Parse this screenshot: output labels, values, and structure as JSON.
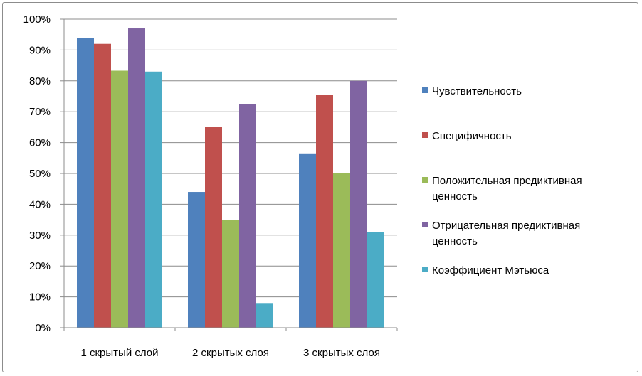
{
  "chart_data": {
    "type": "bar",
    "categories": [
      "1 скрытый слой",
      "2 скрытых слоя",
      "3 скрытых слоя"
    ],
    "series": [
      {
        "name": "Чувствительность",
        "legend_lines": [
          "Чувствительность"
        ],
        "color": "#4f81bd",
        "values": [
          0.94,
          0.44,
          0.565
        ]
      },
      {
        "name": "Специфичность",
        "legend_lines": [
          "Специфичность"
        ],
        "color": "#c0504d",
        "values": [
          0.92,
          0.65,
          0.755
        ]
      },
      {
        "name": "Положительная предиктивная ценность",
        "legend_lines": [
          "Положительная предиктивная",
          "ценность"
        ],
        "color": "#9bbb59",
        "values": [
          0.833,
          0.35,
          0.5
        ]
      },
      {
        "name": "Отрицательная предиктивная ценность",
        "legend_lines": [
          "Отрицательная предиктивная",
          "ценность"
        ],
        "color": "#8064a2",
        "values": [
          0.97,
          0.725,
          0.8
        ]
      },
      {
        "name": "Коэффициент Мэтьюса",
        "legend_lines": [
          "Коэффициент Мэтьюса"
        ],
        "color": "#4bacc6",
        "values": [
          0.83,
          0.08,
          0.31
        ]
      }
    ],
    "ylim": [
      0,
      1
    ],
    "yticks": [
      0,
      0.1,
      0.2,
      0.3,
      0.4,
      0.5,
      0.6,
      0.7,
      0.8,
      0.9,
      1.0
    ],
    "ytick_labels": [
      "0%",
      "10%",
      "20%",
      "30%",
      "40%",
      "50%",
      "60%",
      "70%",
      "80%",
      "90%",
      "100%"
    ],
    "grid": true,
    "legend_position": "right"
  }
}
